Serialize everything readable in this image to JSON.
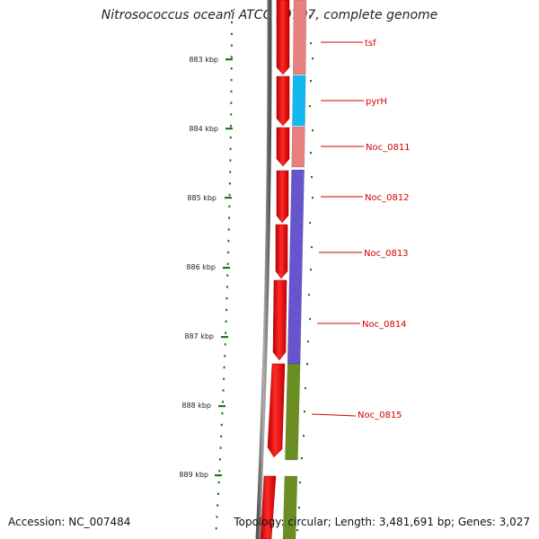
{
  "header": {
    "title": "Nitrosococcus oceani ATCC 19707, complete genome"
  },
  "footer": {
    "accession": "Accession: NC_007484",
    "topology": "Topology: circular; Length: 3,481,691 bp; Genes: 3,027"
  },
  "ruler": {
    "ticks": [
      "883 kbp",
      "884 kbp",
      "885 kbp",
      "886 kbp",
      "887 kbp",
      "888 kbp",
      "889 kbp"
    ]
  },
  "genes": [
    {
      "name": "tsf",
      "color": "#e88080"
    },
    {
      "name": "pyrH",
      "color": "#12b8f0"
    },
    {
      "name": "Noc_0811",
      "color": "#e88080"
    },
    {
      "name": "Noc_0812",
      "color": "#6655cc"
    },
    {
      "name": "Noc_0813",
      "color": "#6655cc"
    },
    {
      "name": "Noc_0814",
      "color": "#6655cc"
    },
    {
      "name": "Noc_0815",
      "color": "#6b8e23"
    }
  ],
  "colors": {
    "cds_strand": "#ff0000",
    "backbone": "#808080",
    "ruler_ticks": "#1a7a1a",
    "gene_label": "#d40000"
  }
}
